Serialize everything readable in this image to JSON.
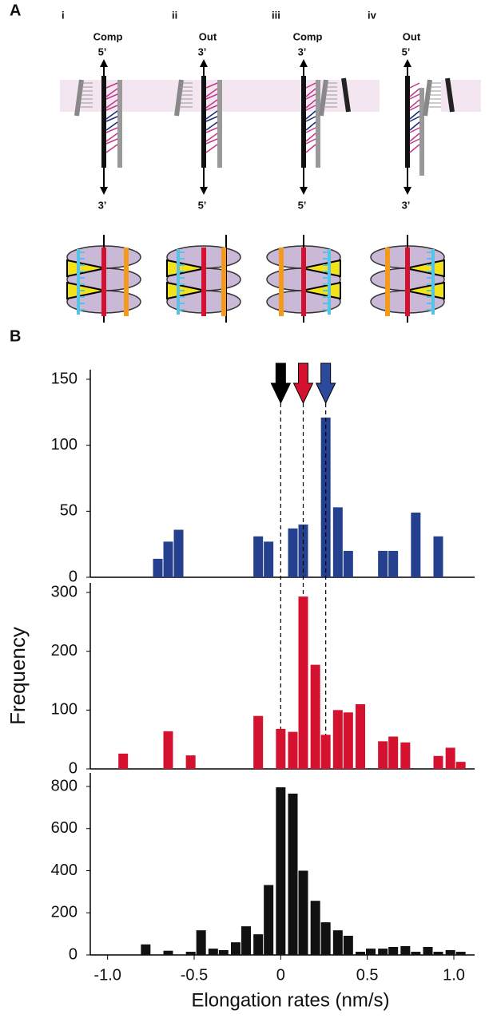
{
  "figure": {
    "panel_a_label": "A",
    "panel_b_label": "B"
  },
  "diagram": {
    "columns": [
      {
        "numeral": "i",
        "mode": "Comp",
        "top_end": "5’",
        "bottom_end": "3’"
      },
      {
        "numeral": "ii",
        "mode": "Out",
        "top_end": "3’",
        "bottom_end": "5’"
      },
      {
        "numeral": "iii",
        "mode": "Comp",
        "top_end": "3’",
        "bottom_end": "5’"
      },
      {
        "numeral": "iv",
        "mode": "Out",
        "top_end": "5’",
        "bottom_end": "3’"
      }
    ]
  },
  "chart_data": [
    {
      "type": "bar",
      "color": "#24408f",
      "x": [
        -0.71,
        -0.65,
        -0.59,
        -0.13,
        -0.07,
        0.07,
        0.13,
        0.26,
        0.33,
        0.39,
        0.59,
        0.65,
        0.78,
        0.91
      ],
      "values": [
        14,
        27,
        36,
        31,
        27,
        37,
        40,
        121,
        53,
        20,
        20,
        20,
        49,
        31
      ],
      "xlim": [
        -1.1,
        1.12
      ],
      "ylim": [
        0,
        150
      ],
      "yticks": [
        0,
        50,
        100,
        150
      ],
      "markers": [
        {
          "x": 0,
          "color": "#000000"
        },
        {
          "x": 0.13,
          "color": "#d4112e"
        },
        {
          "x": 0.26,
          "color": "#2b4a9e"
        }
      ]
    },
    {
      "type": "bar",
      "color": "#d4112e",
      "y_label": "Frequency",
      "x": [
        -0.91,
        -0.65,
        -0.52,
        -0.13,
        0,
        0.07,
        0.13,
        0.2,
        0.26,
        0.33,
        0.39,
        0.46,
        0.59,
        0.65,
        0.72,
        0.91,
        0.98,
        1.04
      ],
      "values": [
        26,
        64,
        23,
        90,
        68,
        63,
        293,
        177,
        58,
        100,
        96,
        110,
        47,
        55,
        45,
        22,
        36,
        12
      ],
      "xlim": [
        -1.1,
        1.12
      ],
      "ylim": [
        0,
        300
      ],
      "yticks": [
        0,
        100,
        200,
        300
      ]
    },
    {
      "type": "bar",
      "color": "#111111",
      "x_label": "Elongation rates (nm/s)",
      "x": [
        -0.78,
        -0.65,
        -0.52,
        -0.46,
        -0.39,
        -0.33,
        -0.26,
        -0.2,
        -0.13,
        -0.07,
        0,
        0.07,
        0.13,
        0.2,
        0.26,
        0.33,
        0.39,
        0.46,
        0.52,
        0.59,
        0.65,
        0.72,
        0.78,
        0.85,
        0.91,
        0.98,
        1.04
      ],
      "values": [
        50,
        20,
        15,
        117,
        30,
        23,
        60,
        136,
        98,
        332,
        796,
        766,
        400,
        257,
        155,
        117,
        91,
        15,
        30,
        30,
        38,
        42,
        15,
        38,
        15,
        23,
        15
      ],
      "xlim": [
        -1.1,
        1.12
      ],
      "ylim": [
        0,
        800
      ],
      "yticks": [
        0,
        200,
        400,
        600,
        800
      ],
      "xticks": [
        {
          "value": -1,
          "label": "-1.0"
        },
        -0.5,
        0,
        0.5,
        {
          "value": 1,
          "label": "1.0"
        }
      ]
    }
  ]
}
